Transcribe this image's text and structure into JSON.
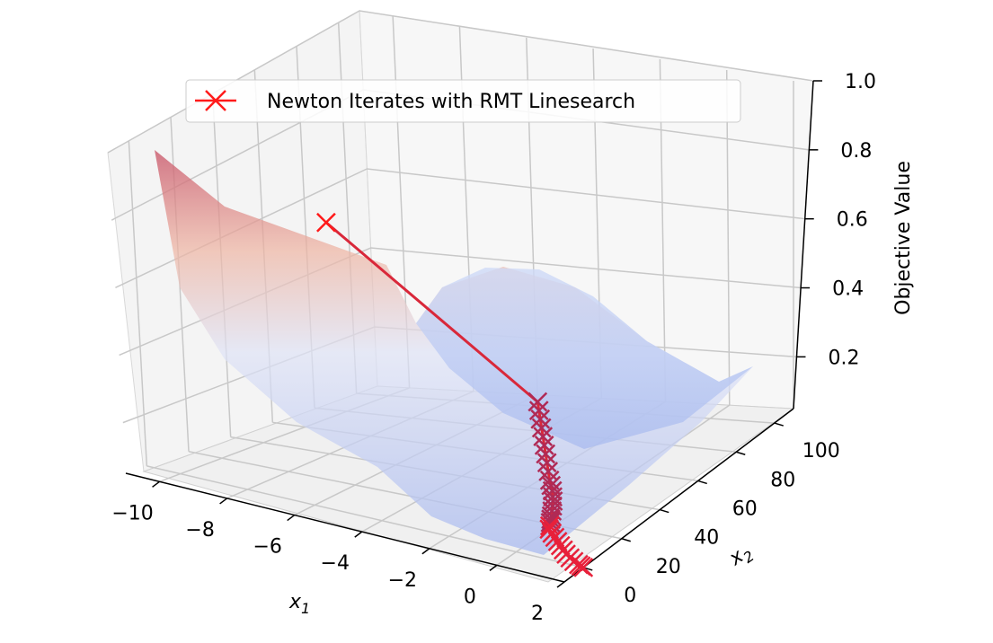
{
  "chart_data": {
    "type": "surface3d",
    "grid": true,
    "legend_placement": "top",
    "legend": [
      {
        "label": "Newton Iterates with RMT Linesearch",
        "color": "#ff1a1a",
        "marker": "x"
      }
    ],
    "axes": {
      "x": {
        "label": "x1",
        "label_main": "x",
        "label_sub": "1",
        "lim": [
          -11,
          2
        ],
        "ticks": [
          -10,
          -8,
          -6,
          -4,
          -2,
          0,
          2
        ],
        "tick_labels": [
          "−10",
          "−8",
          "−6",
          "−4",
          "−2",
          "0",
          "2"
        ]
      },
      "y": {
        "label": "x2",
        "label_main": "x",
        "label_sub": "2",
        "lim": [
          -10,
          110
        ],
        "ticks": [
          0,
          20,
          40,
          60,
          80,
          100
        ],
        "tick_labels": [
          "0",
          "20",
          "40",
          "60",
          "80",
          "100"
        ]
      },
      "z": {
        "label": "Objective Value",
        "lim": [
          0.05,
          1.0
        ],
        "ticks": [
          0.2,
          0.4,
          0.6,
          0.8,
          1.0
        ],
        "tick_labels": [
          "0.2",
          "0.4",
          "0.6",
          "0.8",
          "1.0"
        ]
      }
    },
    "surface": {
      "colormap": "coolwarm",
      "alpha": 0.5,
      "x_range": [
        -11,
        2
      ],
      "y_range": [
        -10,
        110
      ]
    },
    "series": [
      {
        "name": "Newton Iterates with RMT Linesearch",
        "points": [
          {
            "x": -10.0,
            "y": 70.0,
            "z": 0.62
          },
          {
            "x": -2.0,
            "y": 45.0,
            "z": 0.28
          },
          {
            "x": -1.9,
            "y": 44.0,
            "z": 0.26
          },
          {
            "x": -1.8,
            "y": 43.0,
            "z": 0.24
          },
          {
            "x": -1.7,
            "y": 42.0,
            "z": 0.22
          },
          {
            "x": -1.6,
            "y": 41.0,
            "z": 0.2
          },
          {
            "x": -1.5,
            "y": 40.0,
            "z": 0.18
          },
          {
            "x": -1.4,
            "y": 39.0,
            "z": 0.16
          },
          {
            "x": -1.3,
            "y": 38.0,
            "z": 0.14
          },
          {
            "x": -1.2,
            "y": 37.0,
            "z": 0.12
          },
          {
            "x": -1.1,
            "y": 36.0,
            "z": 0.1
          },
          {
            "x": -1.0,
            "y": 35.0,
            "z": 0.09
          },
          {
            "x": -0.9,
            "y": 34.0,
            "z": 0.08
          },
          {
            "x": -0.8,
            "y": 32.5,
            "z": 0.07
          },
          {
            "x": -0.7,
            "y": 31.0,
            "z": 0.065
          },
          {
            "x": -0.6,
            "y": 29.0,
            "z": 0.06
          },
          {
            "x": -0.5,
            "y": 27.0,
            "z": 0.055
          },
          {
            "x": -0.4,
            "y": 25.0,
            "z": 0.05
          },
          {
            "x": -0.3,
            "y": 23.0,
            "z": 0.05
          },
          {
            "x": -0.2,
            "y": 21.0,
            "z": 0.05
          },
          {
            "x": -0.1,
            "y": 19.0,
            "z": 0.05
          },
          {
            "x": 0.0,
            "y": 17.0,
            "z": 0.05
          },
          {
            "x": 0.2,
            "y": 15.0,
            "z": 0.05
          },
          {
            "x": 0.4,
            "y": 13.0,
            "z": 0.05
          },
          {
            "x": 0.6,
            "y": 11.0,
            "z": 0.05
          },
          {
            "x": 0.8,
            "y": 9.0,
            "z": 0.05
          },
          {
            "x": 1.0,
            "y": 7.0,
            "z": 0.05
          },
          {
            "x": 1.2,
            "y": 5.0,
            "z": 0.05
          },
          {
            "x": 1.4,
            "y": 3.5,
            "z": 0.05
          },
          {
            "x": 1.6,
            "y": 2.0,
            "z": 0.05
          },
          {
            "x": 1.8,
            "y": 1.0,
            "z": 0.05
          },
          {
            "x": 1.9,
            "y": 0.5,
            "z": 0.05
          },
          {
            "x": 2.0,
            "y": 0.0,
            "z": 0.05
          }
        ]
      }
    ]
  }
}
